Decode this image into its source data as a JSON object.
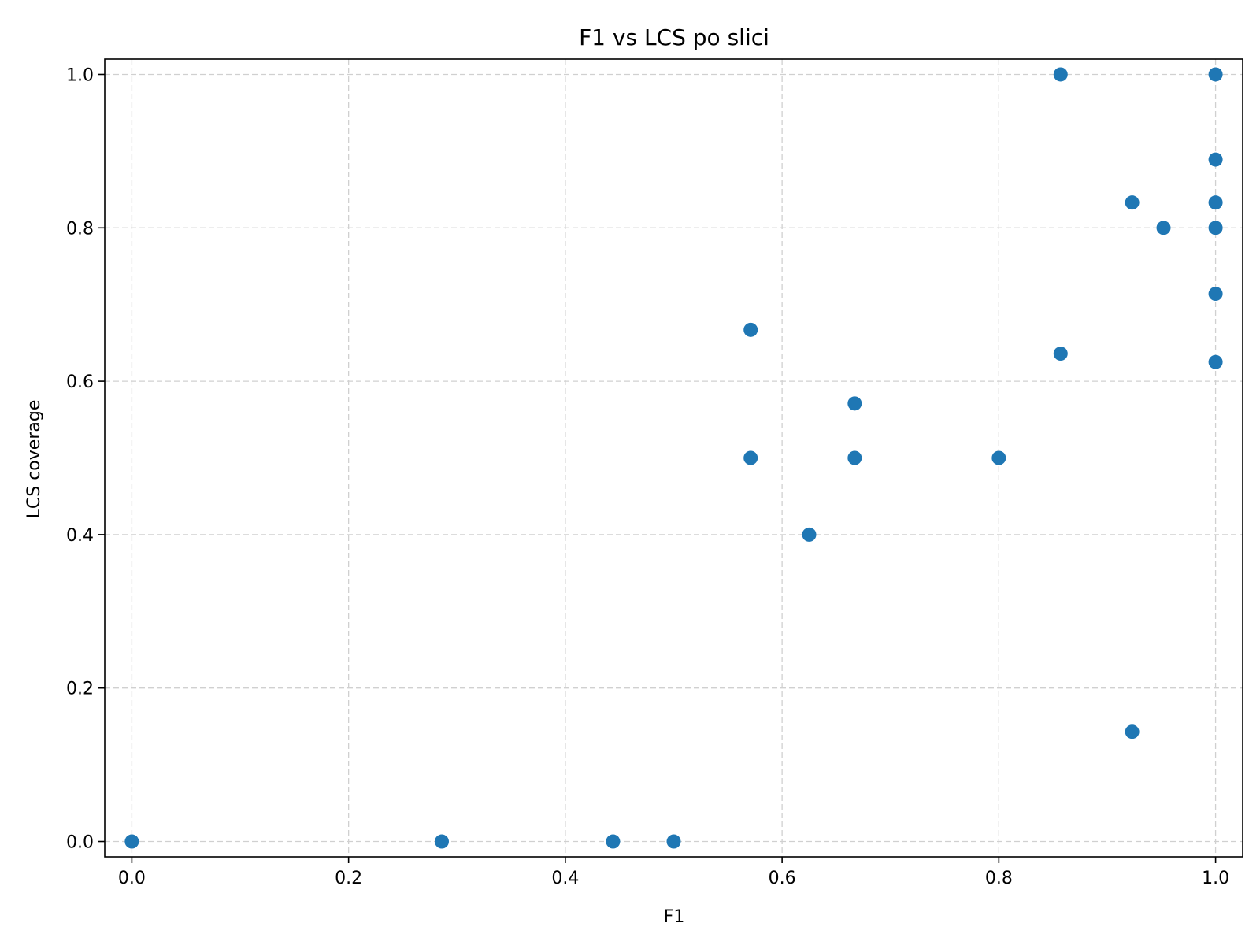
{
  "chart_data": {
    "type": "scatter",
    "title": "F1 vs LCS po slici",
    "xlabel": "F1",
    "ylabel": "LCS coverage",
    "xlim": [
      -0.025,
      1.025
    ],
    "ylim": [
      -0.02,
      1.02
    ],
    "xticks": [
      "0.0",
      "0.2",
      "0.4",
      "0.6",
      "0.8",
      "1.0"
    ],
    "yticks": [
      "0.0",
      "0.2",
      "0.4",
      "0.6",
      "0.8",
      "1.0"
    ],
    "grid": true,
    "marker_color": "#1f77b4",
    "points": [
      {
        "x": 0.0,
        "y": 0.0
      },
      {
        "x": 0.286,
        "y": 0.0
      },
      {
        "x": 0.444,
        "y": 0.0
      },
      {
        "x": 0.5,
        "y": 0.0
      },
      {
        "x": 0.571,
        "y": 0.667
      },
      {
        "x": 0.571,
        "y": 0.5
      },
      {
        "x": 0.625,
        "y": 0.4
      },
      {
        "x": 0.667,
        "y": 0.571
      },
      {
        "x": 0.667,
        "y": 0.5
      },
      {
        "x": 0.8,
        "y": 0.5
      },
      {
        "x": 0.857,
        "y": 1.0
      },
      {
        "x": 0.857,
        "y": 0.636
      },
      {
        "x": 0.923,
        "y": 0.833
      },
      {
        "x": 0.923,
        "y": 0.143
      },
      {
        "x": 0.952,
        "y": 0.8
      },
      {
        "x": 1.0,
        "y": 1.0
      },
      {
        "x": 1.0,
        "y": 0.889
      },
      {
        "x": 1.0,
        "y": 0.833
      },
      {
        "x": 1.0,
        "y": 0.8
      },
      {
        "x": 1.0,
        "y": 0.714
      },
      {
        "x": 1.0,
        "y": 0.625
      }
    ]
  }
}
